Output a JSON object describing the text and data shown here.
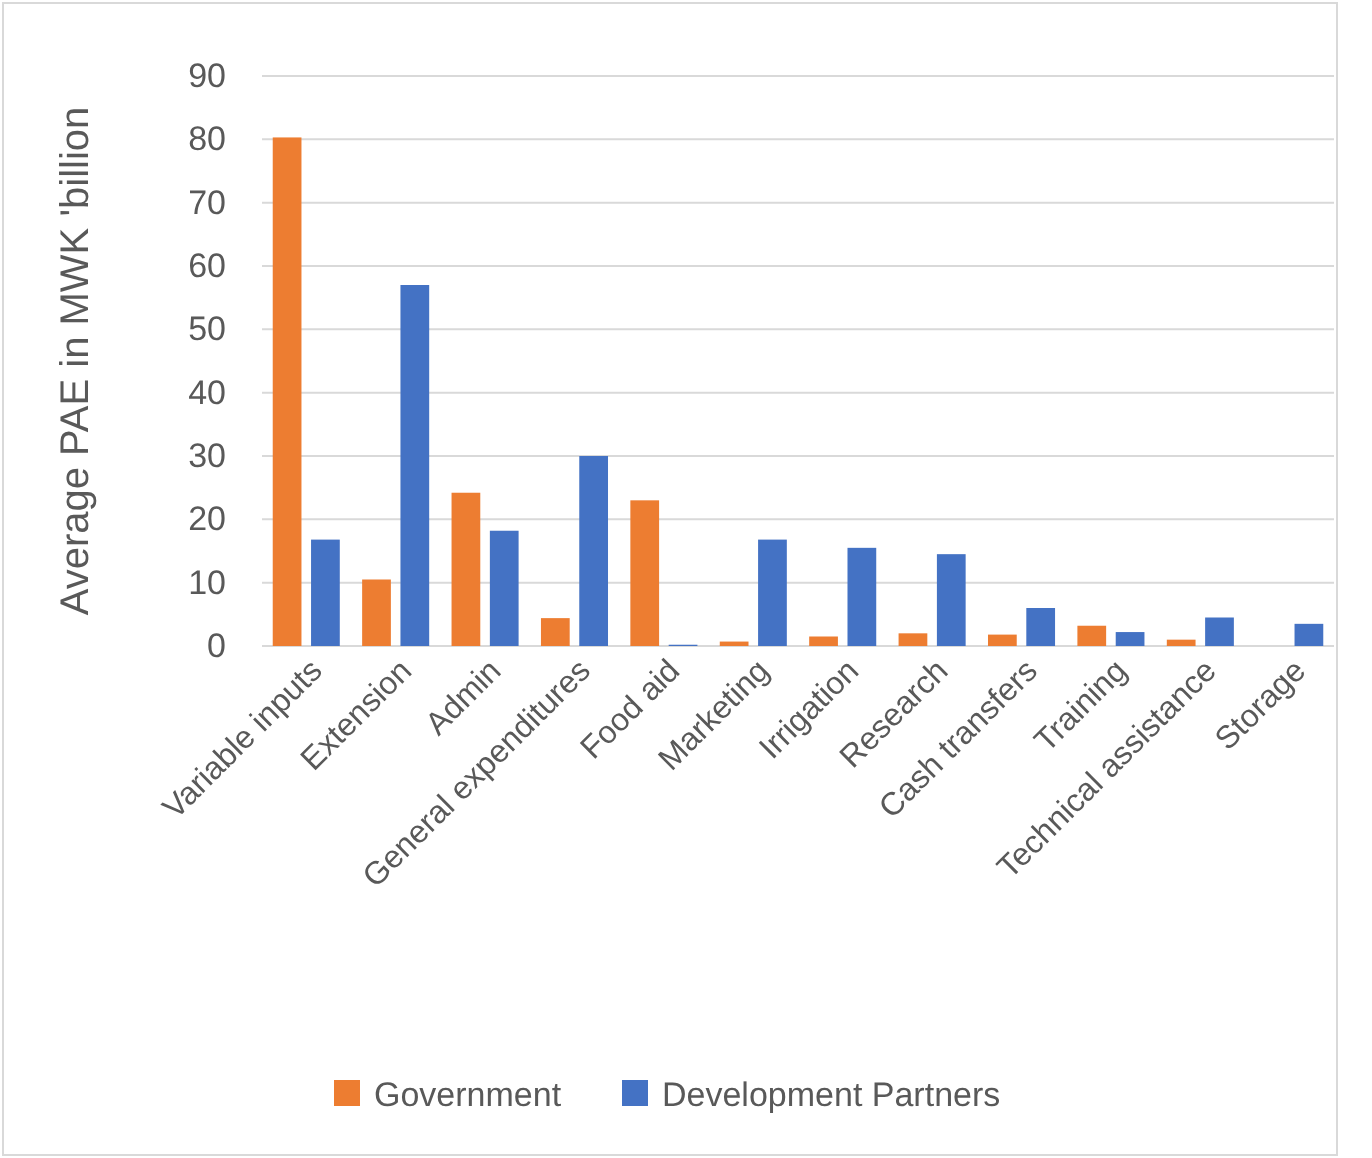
{
  "chart_data": {
    "type": "bar",
    "ylabel": "Average PAE in MWK 'billion",
    "categories": [
      "Variable inputs",
      "Extension",
      "Admin",
      "General expenditures",
      "Food aid",
      "Marketing",
      "Irrigation",
      "Research",
      "Cash transfers",
      "Training",
      "Technical assistance",
      "Storage"
    ],
    "series": [
      {
        "name": "Government",
        "color": "#ed7d31",
        "values": [
          80.3,
          10.5,
          24.2,
          4.4,
          23,
          0.7,
          1.5,
          2,
          1.8,
          3.2,
          1,
          0
        ]
      },
      {
        "name": "Development Partners",
        "color": "#4472c4",
        "values": [
          16.8,
          57,
          18.2,
          30,
          0.2,
          16.8,
          15.5,
          14.5,
          6,
          2.2,
          4.5,
          3.5
        ]
      }
    ],
    "ylim": [
      0,
      90
    ],
    "yticks": [
      0,
      10,
      20,
      30,
      40,
      50,
      60,
      70,
      80,
      90
    ],
    "grid": "y",
    "legend": "bottom"
  }
}
